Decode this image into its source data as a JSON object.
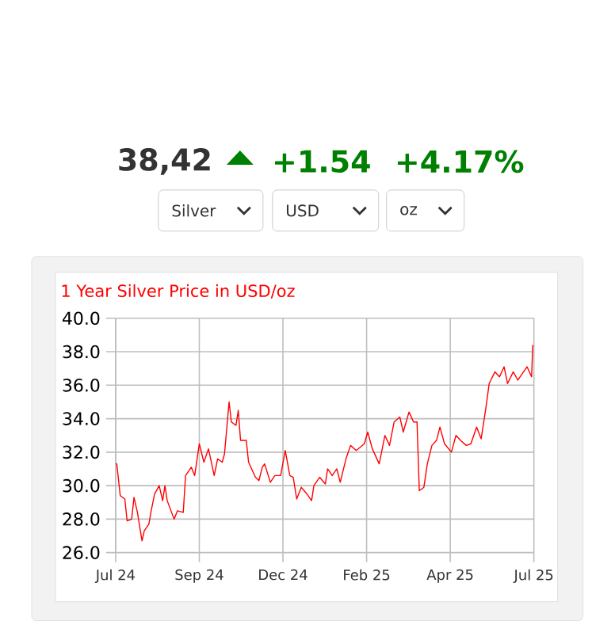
{
  "chart_data": {
    "type": "line",
    "title": "1 Year Silver Price in USD/oz",
    "annotations": [
      "38,42",
      "+1.54",
      "+4.17%",
      "Silver",
      "USD",
      "oz"
    ],
    "x": [
      "2024-07-12",
      "2024-07-13",
      "2024-07-16",
      "2024-07-20",
      "2024-07-22",
      "2024-07-26",
      "2024-07-28",
      "2024-07-31",
      "2024-08-04",
      "2024-08-06",
      "2024-08-10",
      "2024-08-12",
      "2024-08-15",
      "2024-08-19",
      "2024-08-22",
      "2024-08-24",
      "2024-08-26",
      "2024-09-01",
      "2024-09-04",
      "2024-09-09",
      "2024-09-11",
      "2024-09-16",
      "2024-09-19",
      "2024-09-23",
      "2024-09-27",
      "2024-10-01",
      "2024-10-06",
      "2024-10-09",
      "2024-10-13",
      "2024-10-15",
      "2024-10-19",
      "2024-10-21",
      "2024-10-25",
      "2024-10-27",
      "2024-10-29",
      "2024-11-03",
      "2024-11-05",
      "2024-11-11",
      "2024-11-14",
      "2024-11-17",
      "2024-11-19",
      "2024-11-24",
      "2024-11-28",
      "2024-12-03",
      "2024-12-07",
      "2024-12-11",
      "2024-12-14",
      "2024-12-17",
      "2024-12-21",
      "2024-12-26",
      "2024-12-30",
      "2025-01-01",
      "2025-01-06",
      "2025-01-11",
      "2025-01-13",
      "2025-01-17",
      "2025-01-21",
      "2025-01-24",
      "2025-01-29",
      "2025-02-02",
      "2025-02-07",
      "2025-02-14",
      "2025-02-17",
      "2025-02-21",
      "2025-02-27",
      "2025-03-04",
      "2025-03-08",
      "2025-03-12",
      "2025-03-17",
      "2025-03-20",
      "2025-03-25",
      "2025-03-29",
      "2025-04-01",
      "2025-04-03",
      "2025-04-07",
      "2025-04-10",
      "2025-04-14",
      "2025-04-18",
      "2025-04-21",
      "2025-04-25",
      "2025-05-01",
      "2025-05-05",
      "2025-05-09",
      "2025-05-14",
      "2025-05-18",
      "2025-05-23",
      "2025-05-27",
      "2025-05-31",
      "2025-06-03",
      "2025-06-08",
      "2025-06-12",
      "2025-06-16",
      "2025-06-19",
      "2025-06-24",
      "2025-06-28",
      "2025-07-03",
      "2025-07-06",
      "2025-07-10",
      "2025-07-11"
    ],
    "series": [
      {
        "color": "#ff0000",
        "values": [
          31.3,
          31.3,
          29.4,
          29.2,
          27.9,
          28.0,
          29.3,
          28.4,
          26.7,
          27.3,
          27.7,
          28.5,
          29.5,
          30.0,
          29.1,
          30.0,
          29.1,
          28.0,
          28.5,
          28.4,
          30.6,
          31.1,
          30.6,
          32.5,
          31.4,
          32.2,
          30.6,
          31.6,
          31.4,
          31.9,
          35.0,
          33.8,
          33.6,
          34.5,
          32.7,
          32.7,
          31.4,
          30.5,
          30.3,
          31.1,
          31.3,
          30.2,
          30.6,
          30.6,
          32.1,
          30.6,
          30.5,
          29.2,
          29.9,
          29.5,
          29.1,
          30.0,
          30.5,
          30.1,
          31.0,
          30.6,
          31.0,
          30.2,
          31.6,
          32.4,
          32.1,
          32.5,
          33.2,
          32.2,
          31.3,
          33.0,
          32.4,
          33.8,
          34.1,
          33.2,
          34.4,
          33.8,
          33.8,
          29.7,
          29.9,
          31.3,
          32.4,
          32.7,
          33.5,
          32.5,
          32.0,
          33.0,
          32.7,
          32.4,
          32.5,
          33.5,
          32.8,
          34.6,
          36.1,
          36.8,
          36.5,
          37.1,
          36.1,
          36.8,
          36.3,
          36.8,
          37.1,
          36.5,
          38.4
        ]
      }
    ],
    "xlim": [
      "2024-07-12",
      "2025-07-12"
    ],
    "xticks": [
      {
        "value": "2024-07-12",
        "label": "Jul 24"
      },
      {
        "value": "2024-09-23",
        "label": "Sep 24"
      },
      {
        "value": "2024-12-05",
        "label": "Dec 24"
      },
      {
        "value": "2025-02-16",
        "label": "Feb 25"
      },
      {
        "value": "2025-04-30",
        "label": "Apr 25"
      },
      {
        "value": "2025-07-12",
        "label": "Jul 25"
      }
    ],
    "ylim": [
      26,
      40
    ],
    "yticks": [
      {
        "value": 26,
        "label": "26.0"
      },
      {
        "value": 28,
        "label": "28.0"
      },
      {
        "value": 30,
        "label": "30.0"
      },
      {
        "value": 32,
        "label": "32.0"
      },
      {
        "value": 34,
        "label": "34.0"
      },
      {
        "value": 36,
        "label": "36.0"
      },
      {
        "value": 38,
        "label": "38.0"
      },
      {
        "value": 40,
        "label": "40.0"
      }
    ],
    "grid": true,
    "marker": "none",
    "line_style": "solid"
  }
}
